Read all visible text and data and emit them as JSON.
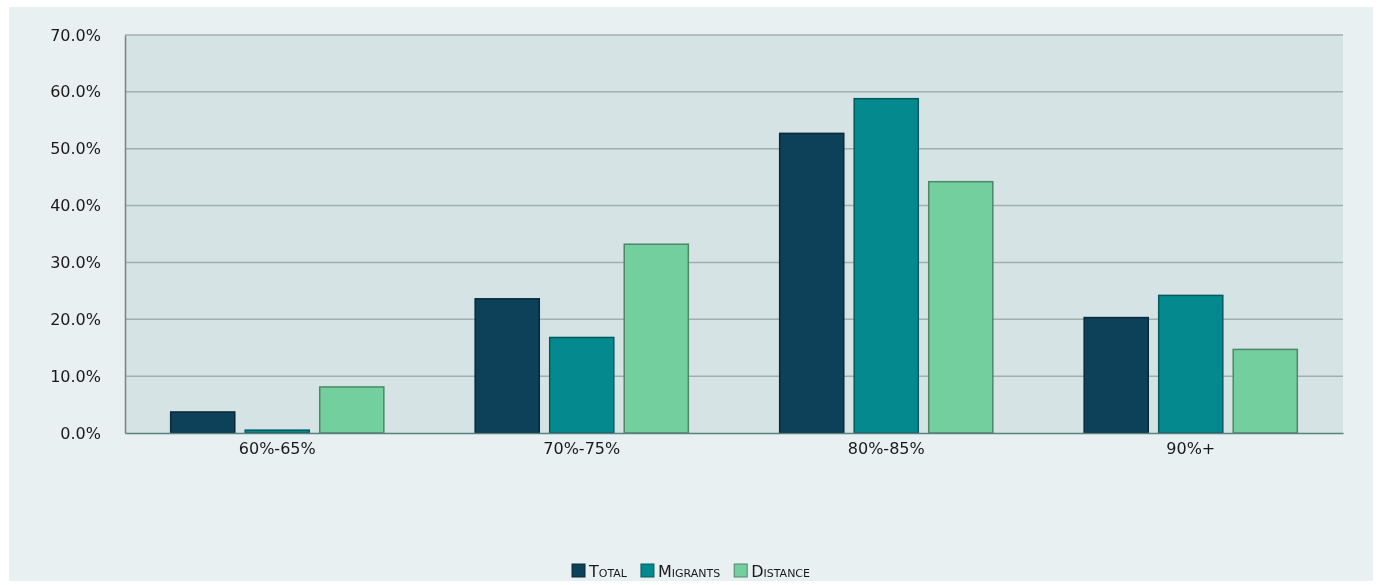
{
  "chart_data": {
    "type": "bar",
    "categories": [
      "60%-65%",
      "70%-75%",
      "80%-85%",
      "90%+"
    ],
    "series": [
      {
        "name": "Total",
        "color": "#0d4159",
        "values": [
          3.7,
          23.6,
          52.7,
          20.3
        ]
      },
      {
        "name": "Migrants",
        "color": "#048a8e",
        "values": [
          0.5,
          16.8,
          58.8,
          24.2
        ]
      },
      {
        "name": "Distance",
        "color": "#74cf9f",
        "values": [
          8.1,
          33.2,
          44.2,
          14.7
        ]
      }
    ],
    "ylim": [
      0,
      70
    ],
    "yticks": [
      {
        "value": 0,
        "label": "0.0%"
      },
      {
        "value": 10,
        "label": "10.0%"
      },
      {
        "value": 20,
        "label": "20.0%"
      },
      {
        "value": 30,
        "label": "30.0%"
      },
      {
        "value": 40,
        "label": "40.0%"
      },
      {
        "value": 50,
        "label": "50.0%"
      },
      {
        "value": 60,
        "label": "60.0%"
      },
      {
        "value": 70,
        "label": "70.0%"
      }
    ],
    "grid": "y",
    "legend": "bottom"
  }
}
